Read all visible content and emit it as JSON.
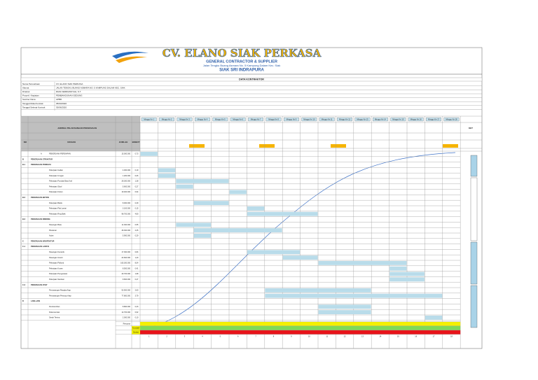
{
  "header": {
    "company": "CV. ELANO SIAK PERKASA",
    "tagline": "GENERAL CONTRACTOR & SUPPLIER",
    "address": "Jalan Tengku Buang Asmara No. 5 Kampung Dalam Kec. Siak",
    "city": "SIAK SRI INDRAPURA"
  },
  "section_title": "DATA KONTRAKTOR",
  "info": [
    [
      "Nama Perusahaan",
      "CV. ELANO SIAK PERKASA"
    ],
    [
      "Alamat",
      "JALAN TENGKU BUANG ASMARA NO. 5 KAMPUNG DALAM KEC. SIAK"
    ],
    [
      "Direktur",
      "RIAN FERDIANSYAH, S.T"
    ],
    [
      "Proyek / Kegiatan",
      "PEMBANGUNAN GEDUNG"
    ],
    [
      "Sumber Dana",
      "APBD"
    ],
    [
      "Tanggal Mulai Kontrak",
      "05/03/2020"
    ],
    [
      "Tanggal Selesai Kontrak",
      "30/06/2020"
    ]
  ],
  "table": {
    "col_no": "NO",
    "col_desc": "URAIAN",
    "col_total": "JUMLAH",
    "col_weight": "BOBOT",
    "col_note": "KET",
    "schedule_title": "JADWAL PELAKSANAAN PEKERJAAN",
    "weeks": [
      "Minggu Ke 1",
      "Minggu Ke 2",
      "Minggu Ke 3",
      "Minggu Ke 4",
      "Minggu Ke 5",
      "Minggu Ke 6",
      "Minggu Ke 7",
      "Minggu Ke 8",
      "Minggu Ke 9",
      "Minggu Ke 10",
      "Minggu Ke 11",
      "Minggu Ke 12",
      "Minggu Ke 13",
      "Minggu Ke 14",
      "Minggu Ke 15",
      "Minggu Ke 16",
      "Minggu Ke 17",
      "Minggu Ke 18"
    ],
    "rows": [
      {
        "no": "A",
        "desc": "PEKERJAAN PERSIAPAN",
        "total": "15.000.000",
        "weight": "0,73"
      },
      {
        "no": "B",
        "desc": "PEKERJAAN STRUKTUR",
        "total": "",
        "weight": ""
      },
      {
        "no": "B.1",
        "desc": "PEKERJAAN PONDASI",
        "total": "",
        "weight": ""
      },
      {
        "no": "",
        "desc": "Pekerjaan Galian",
        "total": "4.000.000",
        "weight": "0,19"
      },
      {
        "no": "",
        "desc": "Pekerjaan Urugan",
        "total": "1.200.000",
        "weight": "0,06"
      },
      {
        "no": "",
        "desc": "Pekerjaan Pondasi Batu Kali",
        "total": "28.300.000",
        "weight": "1,38"
      },
      {
        "no": "",
        "desc": "Pekerjaan Sloof",
        "total": "5.600.000",
        "weight": "0,27"
      },
      {
        "no": "",
        "desc": "Pekerjaan Kolom",
        "total": "19.400.000",
        "weight": "0,94"
      },
      {
        "no": "B.2",
        "desc": "PEKERJAAN BETON",
        "total": "",
        "weight": ""
      },
      {
        "no": "",
        "desc": "Pekerjaan Balok",
        "total": "8.000.000",
        "weight": "0,39"
      },
      {
        "no": "",
        "desc": "Pekerjaan Plat Lantai",
        "total": "3.100.000",
        "weight": "0,15"
      },
      {
        "no": "",
        "desc": "Pekerjaan Ring Balk",
        "total": "98.700.000",
        "weight": "4,80"
      },
      {
        "no": "B.3",
        "desc": "PEKERJAAN DINDING",
        "total": "",
        "weight": ""
      },
      {
        "no": "",
        "desc": "Pasangan Bata",
        "total": "11.300.000",
        "weight": "0,55"
      },
      {
        "no": "",
        "desc": "Plesteran",
        "total": "46.300.000",
        "weight": "2,25"
      },
      {
        "no": "",
        "desc": "Acian",
        "total": "5.900.000",
        "weight": "0,29"
      },
      {
        "no": "C",
        "desc": "PEKERJAAN ARSITEKTUR",
        "total": "",
        "weight": ""
      },
      {
        "no": "C.1",
        "desc": "PEKERJAAN LANTAI",
        "total": "",
        "weight": ""
      },
      {
        "no": "",
        "desc": "Pasangan Keramik",
        "total": "17.300.000",
        "weight": "0,84"
      },
      {
        "no": "",
        "desc": "Pasangan Granit",
        "total": "24.600.000",
        "weight": "1,20"
      },
      {
        "no": "",
        "desc": "Pekerjaan Plafond",
        "total": "165.300.000",
        "weight": "8,04"
      },
      {
        "no": "",
        "desc": "Pekerjaan Kusen",
        "total": "8.500.000",
        "weight": "0,41"
      },
      {
        "no": "",
        "desc": "Pekerjaan Pengecatan",
        "total": "40.700.000",
        "weight": "1,98"
      },
      {
        "no": "",
        "desc": "Pekerjaan Sanitasi",
        "total": "9.600.000",
        "weight": "0,47"
      },
      {
        "no": "C.2",
        "desc": "PEKERJAAN ATAP",
        "total": "",
        "weight": ""
      },
      {
        "no": "",
        "desc": "Pemasangan Rangka Atap",
        "total": "53.500.000",
        "weight": "2,60"
      },
      {
        "no": "",
        "desc": "Pemasangan Penutup Atap",
        "total": "77.800.000",
        "weight": "3,79"
      },
      {
        "no": "D",
        "desc": "LAIN-LAIN",
        "total": "",
        "weight": ""
      },
      {
        "no": "",
        "desc": "Pembersihan",
        "total": "8.800.000",
        "weight": "0,43"
      },
      {
        "no": "",
        "desc": "Dokumentasi",
        "total": "12.700.000",
        "weight": "0,62"
      },
      {
        "no": "",
        "desc": "Serah Terima",
        "total": "2.000.000",
        "weight": "0,10"
      }
    ],
    "plan_label": "Rencana",
    "cumulative_label": "Kumulatif",
    "deviation_label": "Deviasi",
    "week_numbers": [
      1,
      2,
      3,
      4,
      5,
      6,
      7,
      8,
      9,
      10,
      11,
      12,
      13,
      14,
      15,
      16,
      17,
      18
    ]
  }
}
